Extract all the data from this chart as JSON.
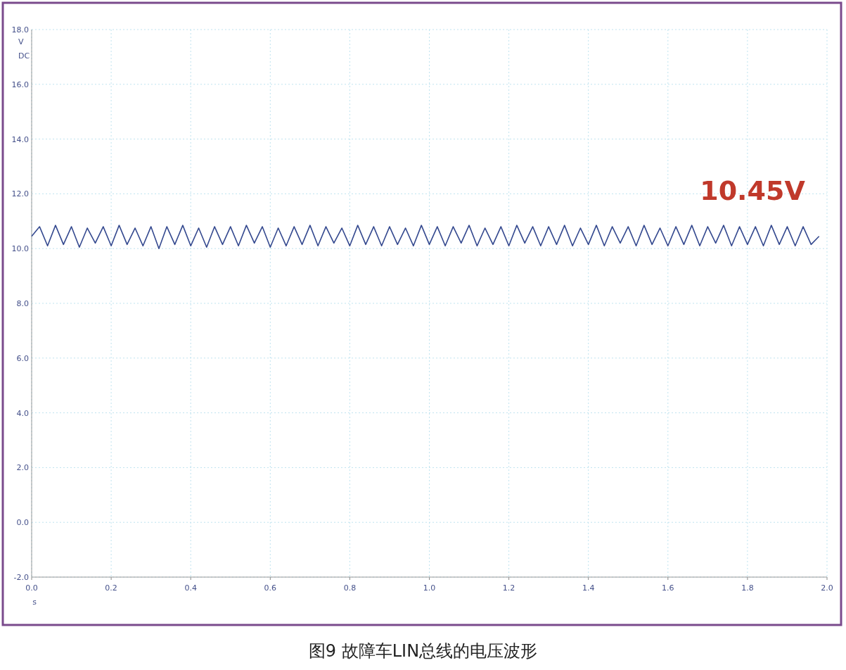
{
  "chart_data": {
    "type": "line",
    "title": "图9 故障车LIN总线的电压波形",
    "xlabel": "s",
    "ylabel": "V\nDC",
    "annotations": [
      "10.45V"
    ],
    "x": [
      0,
      0.02,
      0.04,
      0.06,
      0.08,
      0.1,
      0.12,
      0.14,
      0.16,
      0.18,
      0.2,
      0.22,
      0.24,
      0.26,
      0.28,
      0.3,
      0.32,
      0.34,
      0.36,
      0.38,
      0.4,
      0.42,
      0.44,
      0.46,
      0.48,
      0.5,
      0.52,
      0.54,
      0.56,
      0.58,
      0.6,
      0.62,
      0.64,
      0.66,
      0.68,
      0.7,
      0.72,
      0.74,
      0.76,
      0.78,
      0.8,
      0.82,
      0.84,
      0.86,
      0.88,
      0.9,
      0.92,
      0.94,
      0.96,
      0.98,
      1,
      1.02,
      1.04,
      1.06,
      1.08,
      1.1,
      1.12,
      1.14,
      1.16,
      1.18,
      1.2,
      1.22,
      1.24,
      1.26,
      1.28,
      1.3,
      1.32,
      1.34,
      1.36,
      1.38,
      1.4,
      1.42,
      1.44,
      1.46,
      1.48,
      1.5,
      1.52,
      1.54,
      1.56,
      1.58,
      1.6,
      1.62,
      1.64,
      1.66,
      1.68,
      1.7,
      1.72,
      1.74,
      1.76,
      1.78,
      1.8,
      1.82,
      1.84,
      1.86,
      1.88,
      1.9,
      1.92,
      1.94,
      1.96,
      1.98
    ],
    "series": [
      {
        "color": "#34498f",
        "values": [
          10.45,
          10.8,
          10.1,
          10.85,
          10.15,
          10.8,
          10.05,
          10.75,
          10.2,
          10.8,
          10.1,
          10.85,
          10.15,
          10.75,
          10.1,
          10.8,
          10.0,
          10.8,
          10.15,
          10.85,
          10.1,
          10.75,
          10.05,
          10.8,
          10.15,
          10.8,
          10.1,
          10.85,
          10.2,
          10.8,
          10.05,
          10.75,
          10.1,
          10.8,
          10.15,
          10.85,
          10.1,
          10.8,
          10.2,
          10.75,
          10.1,
          10.85,
          10.15,
          10.8,
          10.1,
          10.8,
          10.15,
          10.75,
          10.1,
          10.85,
          10.15,
          10.8,
          10.1,
          10.8,
          10.2,
          10.85,
          10.1,
          10.75,
          10.15,
          10.8,
          10.1,
          10.85,
          10.2,
          10.8,
          10.1,
          10.8,
          10.15,
          10.85,
          10.1,
          10.75,
          10.15,
          10.85,
          10.1,
          10.8,
          10.2,
          10.8,
          10.1,
          10.85,
          10.15,
          10.75,
          10.1,
          10.8,
          10.15,
          10.85,
          10.1,
          10.8,
          10.2,
          10.85,
          10.1,
          10.8,
          10.15,
          10.8,
          10.1,
          10.85,
          10.15,
          10.8,
          10.1,
          10.8,
          10.15,
          10.45
        ]
      }
    ],
    "xlim": [
      0,
      2
    ],
    "ylim": [
      -2,
      18
    ],
    "xticks": [
      {
        "value": 0,
        "label": "0.0"
      },
      {
        "value": 0.2,
        "label": "0.2"
      },
      {
        "value": 0.4,
        "label": "0.4"
      },
      {
        "value": 0.6,
        "label": "0.6"
      },
      {
        "value": 0.8,
        "label": "0.8"
      },
      {
        "value": 1,
        "label": "1.0"
      },
      {
        "value": 1.2,
        "label": "1.2"
      },
      {
        "value": 1.4,
        "label": "1.4"
      },
      {
        "value": 1.6,
        "label": "1.6"
      },
      {
        "value": 1.8,
        "label": "1.8"
      },
      {
        "value": 2,
        "label": "2.0"
      }
    ],
    "yticks": [
      {
        "value": -2,
        "label": "-2.0"
      },
      {
        "value": 0,
        "label": "0.0"
      },
      {
        "value": 2,
        "label": "2.0"
      },
      {
        "value": 4,
        "label": "4.0"
      },
      {
        "value": 6,
        "label": "6.0"
      },
      {
        "value": 8,
        "label": "8.0"
      },
      {
        "value": 10,
        "label": "10.0"
      },
      {
        "value": 12,
        "label": "12.0"
      },
      {
        "value": 14,
        "label": "14.0"
      },
      {
        "value": 16,
        "label": "16.0"
      },
      {
        "value": 18,
        "label": "18.0"
      }
    ],
    "grid": true,
    "marker": "none",
    "line_style": "solid"
  }
}
